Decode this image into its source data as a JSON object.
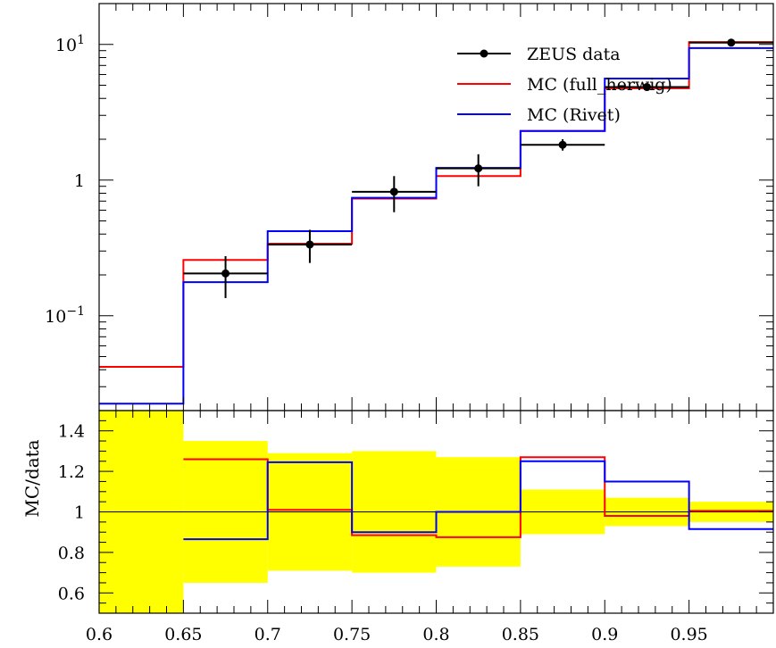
{
  "chart_data": [
    {
      "type": "line",
      "panel": "main",
      "y_scale": "log",
      "ylim": [
        0.02,
        20
      ],
      "xlim": [
        0.6,
        1.0
      ],
      "yticks": [
        {
          "value": 10,
          "label": "10",
          "sup": "1"
        },
        {
          "value": 1,
          "label": "1",
          "sup": ""
        },
        {
          "value": 0.1,
          "label": "10",
          "sup": "−1"
        }
      ],
      "legend_position": "top-right",
      "data_series": {
        "name": "ZEUS data",
        "color": "#000000",
        "points": [
          {
            "x": 0.675,
            "xlo": 0.65,
            "xhi": 0.7,
            "y": 0.205,
            "ylo": 0.135,
            "yhi": 0.275
          },
          {
            "x": 0.725,
            "xlo": 0.7,
            "xhi": 0.75,
            "y": 0.335,
            "ylo": 0.245,
            "yhi": 0.43
          },
          {
            "x": 0.775,
            "xlo": 0.75,
            "xhi": 0.8,
            "y": 0.82,
            "ylo": 0.58,
            "yhi": 1.07
          },
          {
            "x": 0.825,
            "xlo": 0.8,
            "xhi": 0.85,
            "y": 1.22,
            "ylo": 0.9,
            "yhi": 1.55
          },
          {
            "x": 0.875,
            "xlo": 0.85,
            "xhi": 0.9,
            "y": 1.82,
            "ylo": 1.65,
            "yhi": 2.0
          },
          {
            "x": 0.925,
            "xlo": 0.9,
            "xhi": 0.95,
            "y": 4.85,
            "ylo": 4.6,
            "yhi": 5.1
          },
          {
            "x": 0.975,
            "xlo": 0.95,
            "xhi": 1.0,
            "y": 10.3,
            "ylo": 10.0,
            "yhi": 10.6
          }
        ]
      },
      "mc_series": [
        {
          "name": "MC (full_herwig)",
          "color": "#ff0000",
          "edges": [
            0.6,
            0.65,
            0.7,
            0.75,
            0.8,
            0.85,
            0.9,
            0.95,
            1.0
          ],
          "values": [
            0.042,
            0.258,
            0.34,
            0.73,
            1.07,
            2.3,
            4.75,
            10.4
          ]
        },
        {
          "name": "MC (Rivet)",
          "color": "#0000ff",
          "edges": [
            0.6,
            0.65,
            0.7,
            0.75,
            0.8,
            0.85,
            0.9,
            0.95,
            1.0
          ],
          "values": [
            0.0225,
            0.177,
            0.42,
            0.74,
            1.23,
            2.3,
            5.6,
            9.4
          ]
        }
      ]
    },
    {
      "type": "line",
      "panel": "ratio",
      "ylabel": "MC/data",
      "ylim": [
        0.5,
        1.5
      ],
      "xlim": [
        0.6,
        1.0
      ],
      "yticks": [
        "0.6",
        "0.8",
        "1",
        "1.2",
        "1.4"
      ],
      "xticks": [
        "0.6",
        "0.65",
        "0.7",
        "0.75",
        "0.8",
        "0.85",
        "0.9",
        "0.95"
      ],
      "reference_line": 1.0,
      "band": {
        "color": "#ffff00",
        "edges": [
          0.6,
          0.65,
          0.7,
          0.75,
          0.8,
          0.85,
          0.9,
          0.95,
          1.0
        ],
        "lo": [
          0.5,
          0.65,
          0.71,
          0.7,
          0.73,
          0.89,
          0.93,
          0.95
        ],
        "hi": [
          1.5,
          1.35,
          1.29,
          1.3,
          1.27,
          1.11,
          1.07,
          1.05
        ]
      },
      "series": [
        {
          "name": "MC (full_herwig)",
          "color": "#ff0000",
          "values": [
            null,
            1.26,
            1.01,
            0.885,
            0.875,
            1.27,
            0.98,
            1.005
          ]
        },
        {
          "name": "MC (Rivet)",
          "color": "#0000ff",
          "values": [
            null,
            0.865,
            1.245,
            0.9,
            1.0,
            1.25,
            1.15,
            0.915
          ]
        }
      ]
    }
  ]
}
